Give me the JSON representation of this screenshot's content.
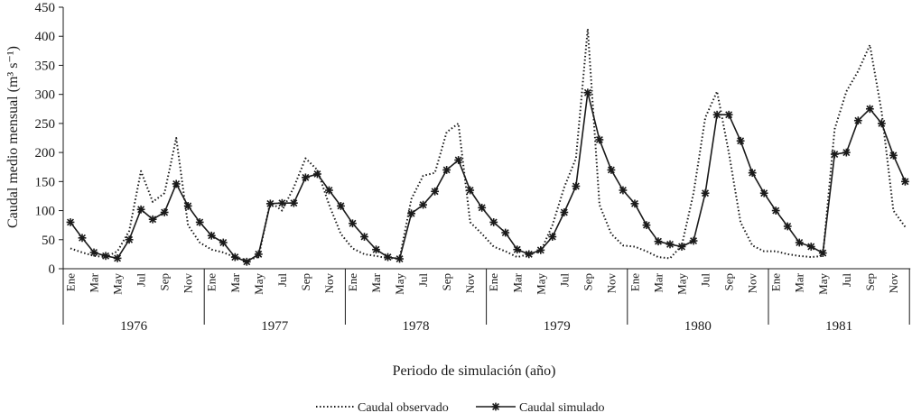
{
  "chart_data": {
    "type": "line",
    "ylabel": "Caudal medio mensual (m³ s⁻¹)",
    "xlabel": "Periodo de simulación (año)",
    "ylim": [
      0,
      450
    ],
    "yticks": [
      0,
      50,
      100,
      150,
      200,
      250,
      300,
      350,
      400,
      450
    ],
    "years": [
      "1976",
      "1977",
      "1978",
      "1979",
      "1980",
      "1981"
    ],
    "month_labels": [
      "Ene",
      "Mar",
      "May",
      "Jul",
      "Sep",
      "Nov"
    ],
    "grid": false,
    "legend_position": "bottom",
    "series": [
      {
        "name": "Caudal observado",
        "style": "dotted",
        "color": "#1a1a1a",
        "values": [
          35,
          28,
          22,
          20,
          30,
          65,
          168,
          115,
          130,
          225,
          75,
          45,
          33,
          28,
          20,
          15,
          20,
          115,
          100,
          140,
          190,
          170,
          110,
          60,
          35,
          25,
          22,
          18,
          18,
          120,
          160,
          165,
          235,
          250,
          80,
          60,
          38,
          30,
          20,
          25,
          30,
          75,
          140,
          190,
          413,
          110,
          60,
          40,
          38,
          30,
          20,
          18,
          40,
          130,
          260,
          305,
          200,
          80,
          40,
          30,
          30,
          25,
          22,
          20,
          22,
          240,
          305,
          340,
          385,
          270,
          100,
          72
        ]
      },
      {
        "name": "Caudal simulado",
        "style": "solid-star",
        "color": "#1a1a1a",
        "values": [
          80,
          53,
          28,
          22,
          18,
          50,
          102,
          85,
          97,
          146,
          108,
          80,
          57,
          45,
          20,
          12,
          25,
          112,
          113,
          113,
          157,
          163,
          135,
          108,
          78,
          55,
          33,
          20,
          17,
          95,
          110,
          133,
          170,
          187,
          135,
          105,
          80,
          62,
          33,
          25,
          32,
          55,
          97,
          142,
          303,
          222,
          170,
          135,
          112,
          75,
          47,
          42,
          38,
          48,
          130,
          265,
          265,
          220,
          165,
          130,
          100,
          73,
          45,
          38,
          27,
          197,
          200,
          255,
          275,
          250,
          195,
          150
        ]
      }
    ]
  }
}
